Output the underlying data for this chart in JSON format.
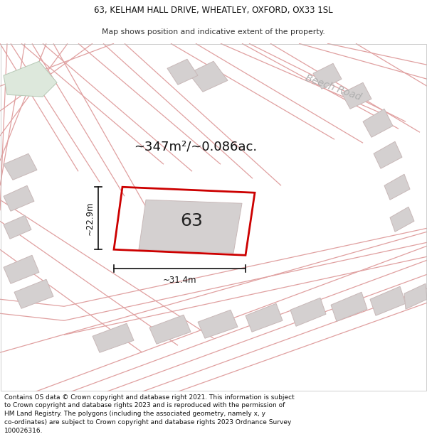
{
  "title_line1": "63, KELHAM HALL DRIVE, WHEATLEY, OXFORD, OX33 1SL",
  "title_line2": "Map shows position and indicative extent of the property.",
  "area_text": "~347m²/~0.086ac.",
  "dim_height": "~22.9m",
  "dim_width": "~31.4m",
  "property_number": "63",
  "road_label": "Beech Road",
  "footer_text": "Contains OS data © Crown copyright and database right 2021. This information is subject to Crown copyright and database rights 2023 and is reproduced with the permission of HM Land Registry. The polygons (including the associated geometry, namely x, y co-ordinates) are subject to Crown copyright and database rights 2023 Ordnance Survey 100026316.",
  "title_fontsize": 8.5,
  "subtitle_fontsize": 7.8,
  "footer_fontsize": 6.5,
  "area_fontsize": 13,
  "dim_fontsize": 8.5,
  "number_fontsize": 18,
  "road_label_fontsize": 10
}
